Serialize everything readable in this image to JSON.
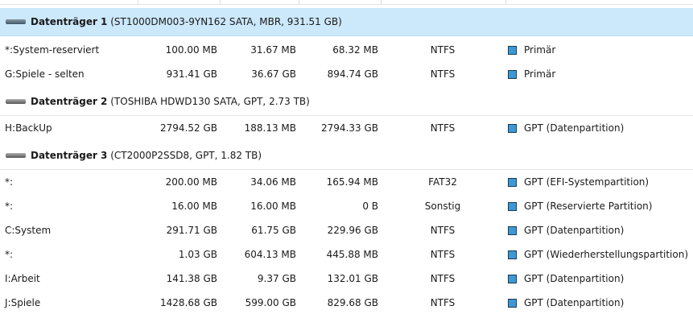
{
  "disks": [
    {
      "title": "Datenträger 1",
      "info": "(ST1000DM003-9YN162 SATA, MBR, 931.51 GB)",
      "selected": true,
      "partitions": [
        {
          "name": "*:System-reserviert",
          "capacity": "100.00 MB",
          "used": "31.67 MB",
          "free": "68.32 MB",
          "fs": "NTFS",
          "type": "Primär"
        },
        {
          "name": "G:Spiele - selten",
          "capacity": "931.41 GB",
          "used": "36.67 GB",
          "free": "894.74 GB",
          "fs": "NTFS",
          "type": "Primär"
        }
      ]
    },
    {
      "title": "Datenträger 2",
      "info": "(TOSHIBA HDWD130 SATA, GPT, 2.73 TB)",
      "selected": false,
      "partitions": [
        {
          "name": "H:BackUp",
          "capacity": "2794.52 GB",
          "used": "188.13 MB",
          "free": "2794.33 GB",
          "fs": "NTFS",
          "type": "GPT (Datenpartition)"
        }
      ]
    },
    {
      "title": "Datenträger 3",
      "info": "(CT2000P2SSD8, GPT, 1.82 TB)",
      "selected": false,
      "partitions": [
        {
          "name": "*:",
          "capacity": "200.00 MB",
          "used": "34.06 MB",
          "free": "165.94 MB",
          "fs": "FAT32",
          "type": "GPT (EFI-Systempartition)"
        },
        {
          "name": "*:",
          "capacity": "16.00 MB",
          "used": "16.00 MB",
          "free": "0 B",
          "fs": "Sonstig",
          "type": "GPT (Reservierte Partition)"
        },
        {
          "name": "C:System",
          "capacity": "291.71 GB",
          "used": "61.75 GB",
          "free": "229.96 GB",
          "fs": "NTFS",
          "type": "GPT (Datenpartition)"
        },
        {
          "name": "*:",
          "capacity": "1.03 GB",
          "used": "604.13 MB",
          "free": "445.88 MB",
          "fs": "NTFS",
          "type": "GPT (Wiederherstellungspartition)"
        },
        {
          "name": "I:Arbeit",
          "capacity": "141.38 GB",
          "used": "9.37 GB",
          "free": "132.01 GB",
          "fs": "NTFS",
          "type": "GPT (Datenpartition)"
        },
        {
          "name": "J:Spiele",
          "capacity": "1428.68 GB",
          "used": "599.00 GB",
          "free": "829.68 GB",
          "fs": "NTFS",
          "type": "GPT (Datenpartition)"
        }
      ]
    }
  ],
  "colors": {
    "selection": "#cce8fb",
    "partition_icon": "#3d98d4"
  }
}
